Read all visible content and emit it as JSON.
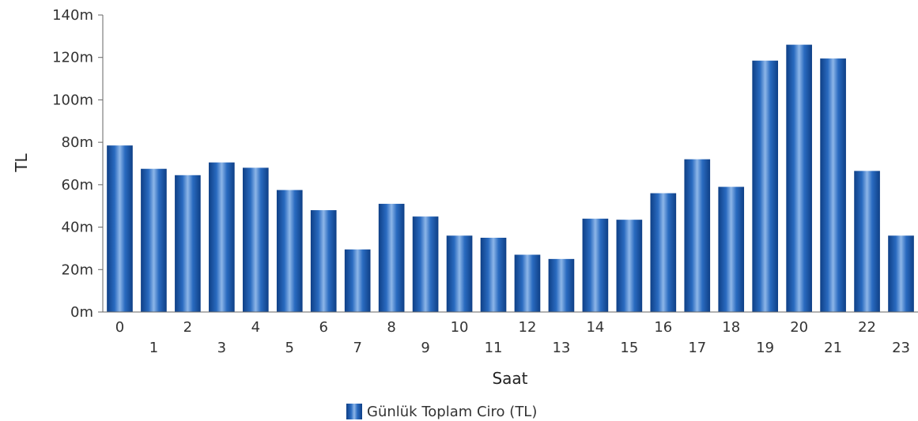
{
  "chart_data": {
    "type": "bar",
    "categories": [
      "0",
      "1",
      "2",
      "3",
      "4",
      "5",
      "6",
      "7",
      "8",
      "9",
      "10",
      "11",
      "12",
      "13",
      "14",
      "15",
      "16",
      "17",
      "18",
      "19",
      "20",
      "21",
      "22",
      "23"
    ],
    "series": [
      {
        "name": "Günlük Toplam Ciro (TL)",
        "values": [
          78.5,
          67.5,
          64.5,
          70.5,
          68,
          57.5,
          48,
          29.5,
          51,
          45,
          36,
          35,
          27,
          25,
          44,
          43.5,
          56,
          72,
          59,
          118.5,
          126,
          119.5,
          66.5,
          36
        ]
      }
    ],
    "title": "",
    "xlabel": "Saat",
    "ylabel": "TL",
    "ylim": [
      0,
      140
    ],
    "yticks": [
      0,
      20,
      40,
      60,
      80,
      100,
      120,
      140
    ],
    "ytick_labels": [
      "0m",
      "20m",
      "40m",
      "60m",
      "80m",
      "100m",
      "120m",
      "140m"
    ],
    "legend_position": "bottom",
    "grid": false,
    "colors": {
      "bar_dark": "#0e3f86",
      "bar_mid": "#2a6bc0",
      "bar_light": "#8db6e8",
      "axis": "#666666"
    }
  }
}
